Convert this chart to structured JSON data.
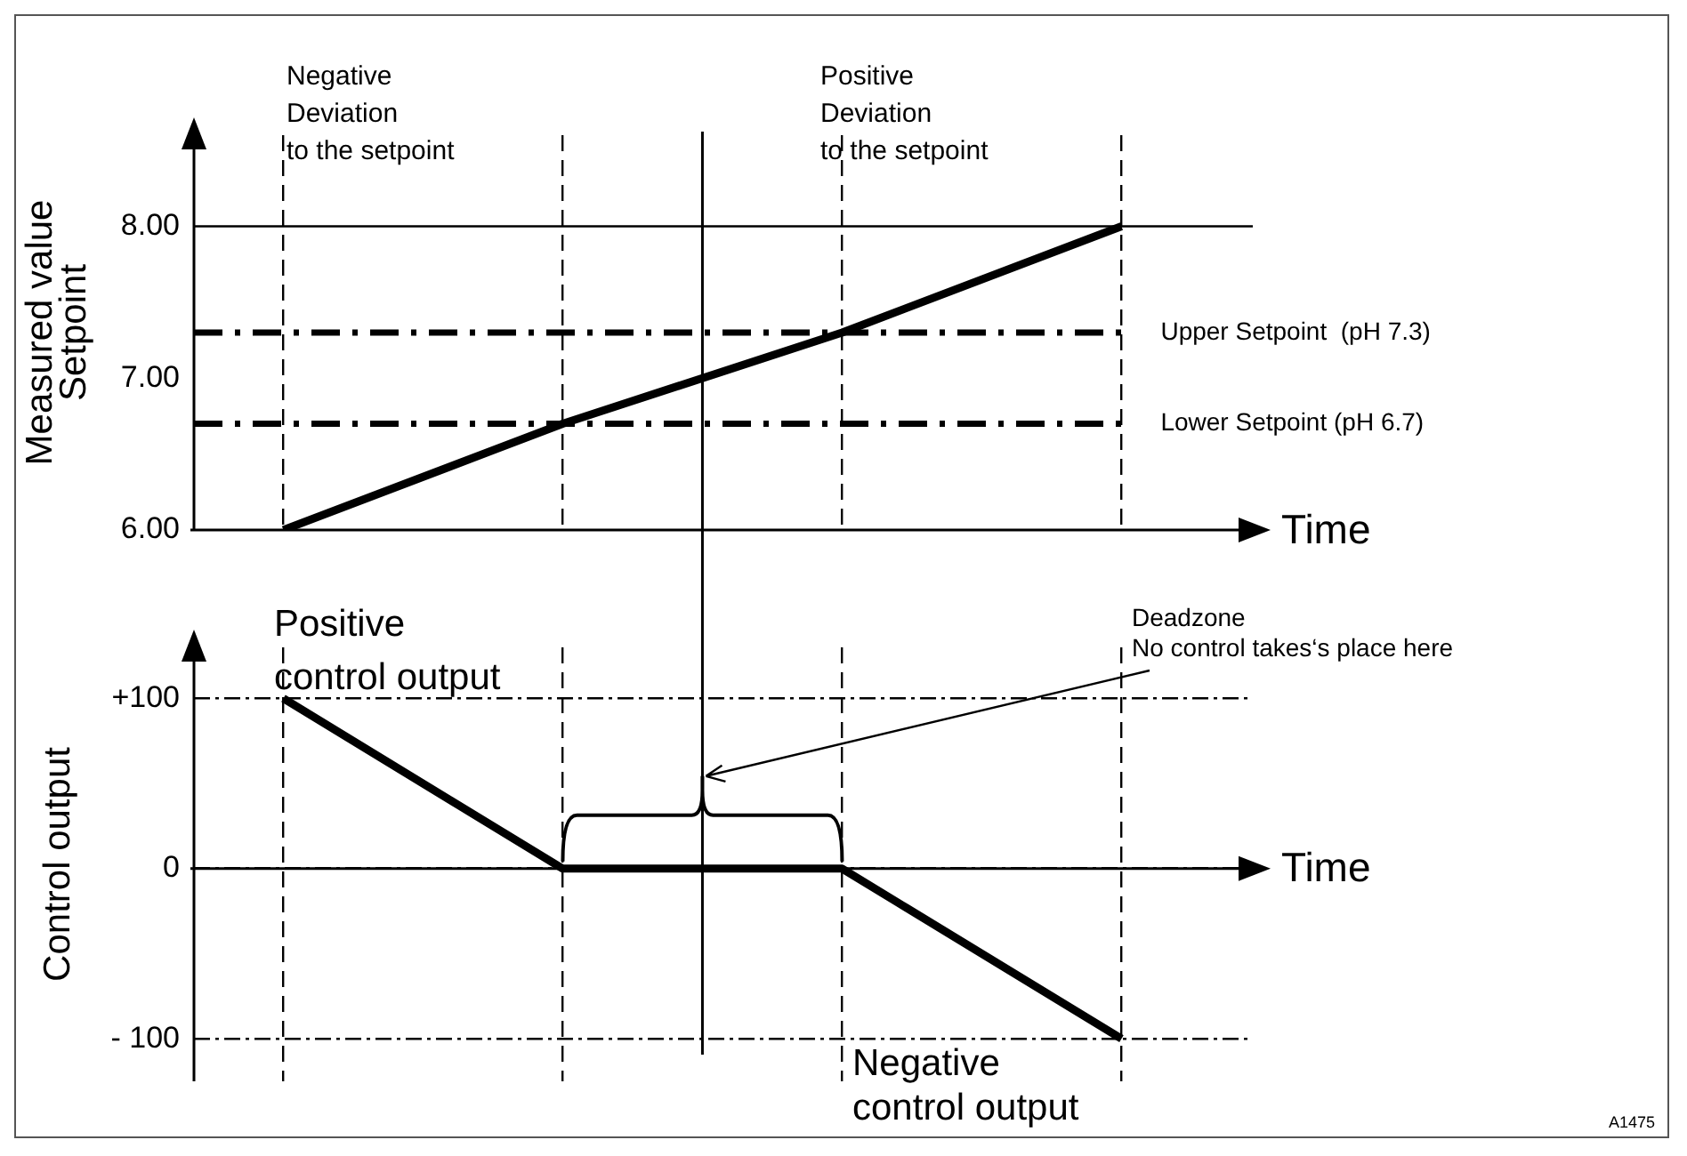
{
  "chart_data": [
    {
      "type": "line",
      "ylabel": "Measured value\nSetpoint",
      "xlabel": "Time",
      "categories": [
        null,
        null,
        null,
        null
      ],
      "series": [
        {
          "color": "#000000",
          "values": [
            6.0,
            6.7,
            7.3,
            8.0
          ]
        }
      ],
      "ylim": [
        6,
        8.6
      ],
      "yticks": [
        {
          "value": 6,
          "label": "6.00"
        },
        {
          "value": 7,
          "label": "7.00"
        },
        {
          "value": 8,
          "label": "8.00"
        }
      ],
      "ref_lines": [
        {
          "axis": "y",
          "value": 8,
          "line_style": "solid"
        },
        {
          "axis": "y",
          "value": 7.3,
          "label": "Upper Setpoint  (pH 7.3)",
          "line_style": "dashed"
        },
        {
          "axis": "y",
          "value": 6.7,
          "label": "Lower Setpoint (pH 6.7)",
          "line_style": "dashed"
        }
      ],
      "annotations": [
        "Negative\nDeviation\nto the setpoint",
        "Positive\nDeviation\nto the setpoint"
      ],
      "grid": "x",
      "tick_labels": "y",
      "marker": "none",
      "line_style": "solid"
    },
    {
      "type": "line",
      "ylabel": "Control output",
      "xlabel": "Time",
      "categories": [
        null,
        null,
        null,
        null
      ],
      "series": [
        {
          "color": "#000000",
          "values": [
            100,
            0,
            0,
            -100
          ]
        }
      ],
      "ylim": [
        -125,
        130
      ],
      "yticks": [
        {
          "value": -100,
          "label": "- 100"
        },
        0,
        {
          "value": 100,
          "label": "+100"
        }
      ],
      "annotations": [
        "Positive\ncontrol output",
        "Deadzone\nNo control takes‘s place here",
        "Negative\ncontrol output",
        "A1475"
      ],
      "grid": true,
      "tick_labels": "y",
      "marker": "none",
      "line_style": "solid"
    }
  ]
}
